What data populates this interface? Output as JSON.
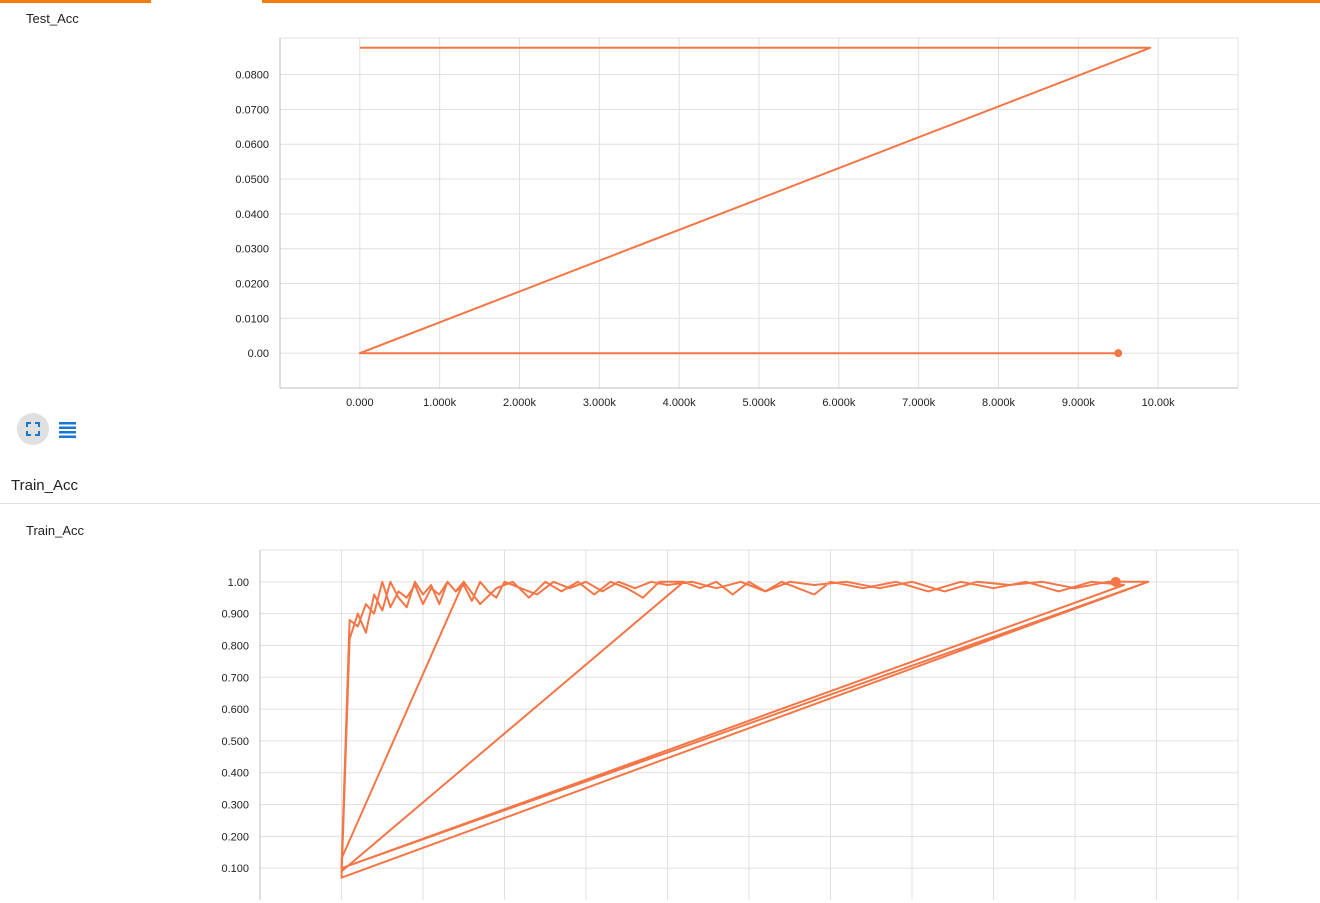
{
  "theme": {
    "accent": "#f57c00",
    "series_color": "#f47646",
    "grid_color": "#e0e0e0"
  },
  "chart1": {
    "card_title": "Test_Acc"
  },
  "group": {
    "header": "Train_Acc"
  },
  "chart2": {
    "card_title": "Train_Acc"
  },
  "controls": {
    "expand_icon": "fullscreen-icon",
    "data_icon": "list-icon"
  },
  "chart_data": [
    {
      "type": "line",
      "title": "Test_Acc",
      "xlabel": "",
      "ylabel": "",
      "grid": true,
      "x_ticks": [
        "0.000",
        "1.000k",
        "2.000k",
        "3.000k",
        "4.000k",
        "5.000k",
        "6.000k",
        "7.000k",
        "8.000k",
        "9.000k",
        "10.00k"
      ],
      "y_ticks": [
        "0.00",
        "0.0100",
        "0.0200",
        "0.0300",
        "0.0400",
        "0.0500",
        "0.0600",
        "0.0700",
        "0.0800"
      ],
      "xlim": [
        -1000,
        11000
      ],
      "ylim": [
        -0.01,
        0.0905
      ],
      "series": [
        {
          "x": [
            0,
            9900,
            0,
            9500
          ],
          "y": [
            0.0877,
            0.0877,
            0,
            0
          ],
          "last_point": [
            9500,
            0
          ]
        }
      ]
    },
    {
      "type": "line",
      "title": "Train_Acc",
      "xlabel": "",
      "ylabel": "",
      "grid": true,
      "y_ticks": [
        "0.100",
        "0.200",
        "0.300",
        "0.400",
        "0.500",
        "0.600",
        "0.700",
        "0.800",
        "0.900",
        "1.00"
      ],
      "xlim": [
        -1000,
        11000
      ],
      "ylim": [
        0,
        1.1
      ],
      "series": [
        {
          "x": [
            0,
            100,
            200,
            300,
            400,
            500,
            600,
            700,
            800,
            900,
            1000,
            1100,
            1200,
            1300,
            1400,
            1500,
            1600,
            1700,
            1800,
            1900,
            2000,
            2200,
            2400,
            2600,
            2800,
            3000,
            3200,
            3400,
            3600,
            3800,
            4000,
            4300,
            4600,
            4900,
            5200,
            5500,
            5800,
            6200,
            6600,
            7000,
            7400,
            7800,
            8200,
            8600,
            9000,
            9400,
            9900,
            0,
            100,
            200,
            300,
            400,
            500,
            600,
            700,
            800,
            900,
            1000,
            1100,
            1200,
            1300,
            1400,
            1500,
            0,
            1500,
            1700,
            1900,
            2100,
            2300,
            2500,
            2700,
            2900,
            3100,
            3300,
            3500,
            3700,
            3900,
            4200,
            0,
            4200,
            4400,
            4600,
            4800,
            5000,
            5200,
            5400,
            5600,
            5800,
            6000,
            6400,
            6800,
            7200,
            7600,
            8000,
            8400,
            8800,
            9200,
            9600,
            0,
            9900,
            9500
          ],
          "y": [
            0.1,
            0.88,
            0.86,
            0.93,
            0.9,
            1.0,
            0.92,
            0.97,
            0.95,
            0.99,
            0.93,
            0.98,
            0.96,
            1.0,
            0.97,
            0.99,
            0.94,
            1.0,
            0.97,
            0.95,
            1.0,
            0.98,
            0.96,
            1.0,
            0.98,
            1.0,
            0.97,
            1.0,
            0.98,
            1.0,
            0.99,
            1.0,
            0.98,
            1.0,
            0.97,
            1.0,
            0.99,
            1.0,
            0.98,
            1.0,
            0.97,
            1.0,
            0.99,
            1.0,
            0.98,
            1.0,
            1.0,
            0.07,
            0.82,
            0.9,
            0.84,
            0.96,
            0.91,
            1.0,
            0.95,
            0.92,
            1.0,
            0.96,
            0.99,
            0.93,
            1.0,
            0.97,
            1.0,
            0.13,
            1.0,
            0.93,
            0.98,
            1.0,
            0.95,
            1.0,
            0.97,
            1.0,
            0.96,
            1.0,
            0.98,
            0.95,
            1.0,
            1.0,
            0.09,
            1.0,
            0.98,
            1.0,
            0.96,
            1.0,
            0.97,
            1.0,
            0.98,
            0.96,
            1.0,
            0.98,
            1.0,
            0.97,
            1.0,
            0.98,
            1.0,
            0.97,
            1.0,
            0.99,
            0.1,
            1.0,
            1.0
          ],
          "last_point": [
            9500,
            1.0
          ]
        }
      ]
    }
  ]
}
